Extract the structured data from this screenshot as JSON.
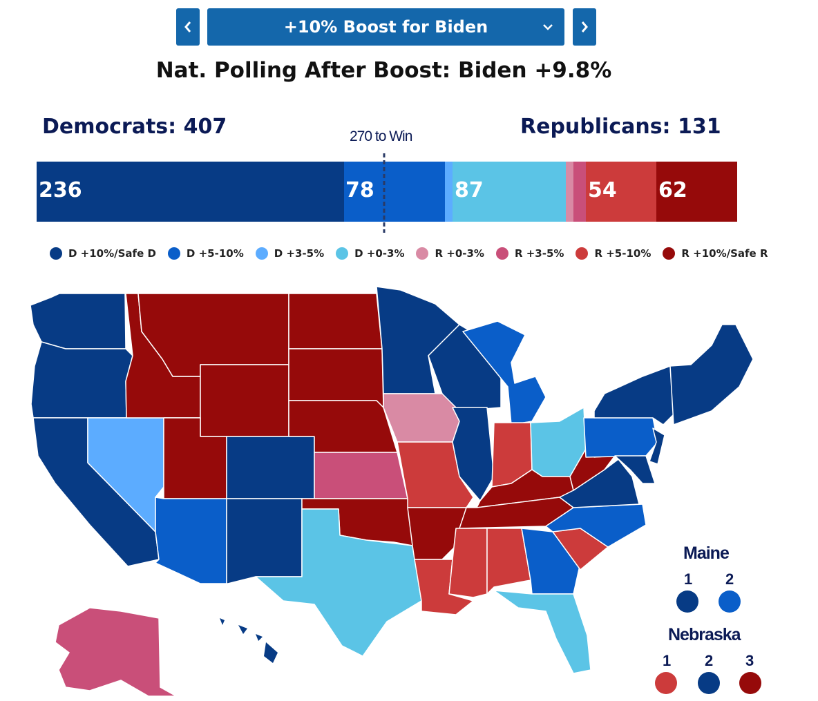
{
  "scenario": {
    "label": "+10% Boost for Biden"
  },
  "headline": "Nat. Polling After Boost: Biden +9.8%",
  "democrats_label": "Democrats: 407",
  "republicans_label": "Republicans: 131",
  "win_label": "270 to Win",
  "bar_labels": {
    "d_safe": "236",
    "d_5_10": "78",
    "d_0_3": "87",
    "r_5_10": "54",
    "r_safe": "62"
  },
  "legend": [
    {
      "label": "D +10%/Safe D",
      "color": "#073b85"
    },
    {
      "label": "D +5-10%",
      "color": "#0a5ec9"
    },
    {
      "label": "D +3-5%",
      "color": "#5cacff"
    },
    {
      "label": "D +0-3%",
      "color": "#5bc4e6"
    },
    {
      "label": "R +0-3%",
      "color": "#d98aa4"
    },
    {
      "label": "R +3-5%",
      "color": "#c94f79"
    },
    {
      "label": "R +5-10%",
      "color": "#cc3b3b"
    },
    {
      "label": "R +10%/Safe R",
      "color": "#960a0a"
    }
  ],
  "colors": {
    "button_bg": "#1467ab",
    "d_safe": "#073b85",
    "d_5_10": "#0a5ec9",
    "d_3_5": "#5cacff",
    "d_0_3": "#5bc4e6",
    "r_0_3": "#d98aa4",
    "r_3_5": "#c94f79",
    "r_5_10": "#cc3b3b",
    "r_safe": "#960a0a"
  },
  "maine": {
    "title": "Maine",
    "districts": [
      {
        "num": "1",
        "rating": "D +10%/Safe D"
      },
      {
        "num": "2",
        "rating": "D +5-10%"
      }
    ]
  },
  "nebraska": {
    "title": "Nebraska",
    "districts": [
      {
        "num": "1",
        "rating": "R +5-10%"
      },
      {
        "num": "2",
        "rating": "D +10%/Safe D"
      },
      {
        "num": "3",
        "rating": "R +10%/Safe R"
      }
    ]
  }
}
